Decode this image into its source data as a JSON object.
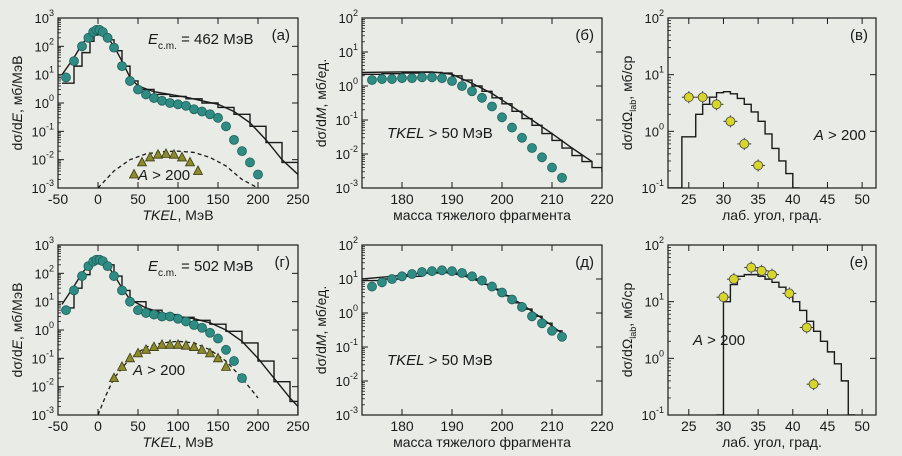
{
  "colors": {
    "background": "#e9ebe7",
    "ink": "#1a1a1a",
    "teal": "#2f8c84",
    "yellow": "#d8d62a",
    "olive": "#8c8a2a"
  },
  "chart_data": [
    {
      "id": "a",
      "type": "scatter",
      "panel_label": "(a)",
      "energy_label": "E",
      "energy_sub": "c.m.",
      "energy_value": " = 462 МэВ",
      "annotation": "A > 200",
      "xlabel": "TKEL, МэВ",
      "ylabel": "dσ/dE, мб/МэВ",
      "xlim": [
        -50,
        250
      ],
      "ylog": true,
      "ylim_exp": [
        -3,
        3
      ],
      "xticks": [
        -50,
        0,
        50,
        100,
        150,
        200,
        250
      ],
      "series": [
        {
          "kind": "points",
          "style": "teal",
          "x": [
            -40,
            -30,
            -20,
            -12,
            -6,
            -2,
            2,
            6,
            12,
            20,
            30,
            40,
            50,
            60,
            70,
            80,
            90,
            100,
            110,
            120,
            130,
            140,
            150,
            160,
            170,
            180,
            190,
            200
          ],
          "y": [
            8,
            30,
            100,
            200,
            320,
            380,
            380,
            320,
            200,
            90,
            20,
            6,
            3,
            2,
            1.5,
            1.2,
            1,
            0.9,
            0.8,
            0.6,
            0.5,
            0.4,
            0.3,
            0.15,
            0.05,
            0.02,
            0.008,
            0.003
          ]
        },
        {
          "kind": "points",
          "style": "triangle",
          "x": [
            45,
            55,
            65,
            75,
            85,
            95,
            105,
            115,
            125
          ],
          "y": [
            0.003,
            0.008,
            0.012,
            0.015,
            0.016,
            0.015,
            0.012,
            0.008,
            0.004
          ]
        },
        {
          "kind": "line",
          "style": "solid",
          "x": [
            -45,
            -30,
            -20,
            -10,
            -5,
            0,
            5,
            10,
            20,
            30,
            40,
            50,
            70,
            90,
            110,
            130,
            150,
            170,
            190,
            210,
            230,
            250
          ],
          "y": [
            10,
            40,
            120,
            250,
            350,
            400,
            350,
            250,
            100,
            30,
            8,
            4,
            2.5,
            2,
            1.6,
            1.2,
            0.9,
            0.5,
            0.2,
            0.05,
            0.01,
            0.003
          ]
        },
        {
          "kind": "line",
          "style": "steps",
          "x": [
            -45,
            -30,
            -20,
            -10,
            -5,
            0,
            5,
            10,
            20,
            30,
            40,
            50,
            70,
            90,
            110,
            130,
            150,
            170,
            190,
            210,
            230,
            250
          ],
          "y": [
            5,
            20,
            60,
            150,
            250,
            300,
            260,
            170,
            70,
            20,
            6,
            3,
            2,
            1.7,
            1.4,
            1,
            0.7,
            0.4,
            0.15,
            0.04,
            0.008,
            0.002
          ]
        },
        {
          "kind": "line",
          "style": "dashed",
          "x": [
            0,
            20,
            40,
            60,
            80,
            100,
            120,
            140,
            160,
            180,
            200
          ],
          "y": [
            0.001,
            0.004,
            0.01,
            0.016,
            0.019,
            0.02,
            0.018,
            0.012,
            0.006,
            0.002,
            0.001
          ]
        }
      ]
    },
    {
      "id": "b",
      "type": "scatter",
      "panel_label": "(б)",
      "annotation": "TKEL > 50 МэВ",
      "xlabel": "масса тяжелого фрагмента",
      "ylabel": "dσ/dM, мб/ед.",
      "xlim": [
        172,
        220
      ],
      "ylog": true,
      "ylim_exp": [
        -3,
        2
      ],
      "xticks": [
        180,
        190,
        200,
        210,
        220
      ],
      "series": [
        {
          "kind": "points",
          "style": "teal",
          "x": [
            174,
            176,
            178,
            180,
            182,
            184,
            186,
            188,
            190,
            192,
            194,
            196,
            198,
            200,
            202,
            204,
            206,
            208,
            210,
            212
          ],
          "y": [
            1.5,
            1.6,
            1.6,
            1.7,
            1.7,
            1.8,
            1.8,
            1.7,
            1.4,
            1.0,
            0.7,
            0.45,
            0.25,
            0.12,
            0.06,
            0.03,
            0.015,
            0.008,
            0.004,
            0.002
          ]
        },
        {
          "kind": "line",
          "style": "steps",
          "x": [
            172,
            176,
            180,
            184,
            188,
            190,
            192,
            194,
            196,
            198,
            200,
            202,
            204,
            206,
            208,
            210,
            212,
            214,
            216,
            218,
            220
          ],
          "y": [
            2.2,
            2.3,
            2.4,
            2.5,
            2.4,
            2.0,
            1.5,
            1.0,
            0.7,
            0.45,
            0.3,
            0.18,
            0.11,
            0.07,
            0.04,
            0.025,
            0.015,
            0.009,
            0.006,
            0.004,
            0.003
          ]
        },
        {
          "kind": "line",
          "style": "solid",
          "x": [
            172,
            180,
            186,
            190,
            194,
            198,
            202,
            206,
            210,
            214,
            218
          ],
          "y": [
            2.5,
            2.6,
            2.6,
            2.2,
            1.2,
            0.6,
            0.25,
            0.1,
            0.04,
            0.015,
            0.006
          ]
        }
      ]
    },
    {
      "id": "c",
      "type": "scatter",
      "panel_label": "(в)",
      "annotation": "A > 200",
      "xlabel": "лаб. угол, град.",
      "ylabel": "dσ/dΩ_lab, мб/ср",
      "ylabel_main": "dσ/dΩ",
      "ylabel_sub": "lab",
      "ylabel_tail": ", мб/ср",
      "xlim": [
        22,
        52
      ],
      "ylog": true,
      "ylim_exp": [
        -1,
        2
      ],
      "xticks": [
        25,
        30,
        35,
        40,
        45,
        50
      ],
      "series": [
        {
          "kind": "points",
          "style": "yellow",
          "x": [
            25,
            27,
            29,
            31,
            33,
            35
          ],
          "y": [
            4,
            4,
            3,
            1.5,
            0.6,
            0.25
          ],
          "xerr": 1
        },
        {
          "kind": "line",
          "style": "steps",
          "x": [
            22,
            24,
            26,
            27,
            28,
            29,
            30,
            31,
            32,
            33,
            34,
            35,
            36,
            37,
            38,
            39,
            40,
            41
          ],
          "y": [
            0.1,
            0.8,
            2,
            3,
            4,
            4.8,
            5,
            4.6,
            3.8,
            3,
            2.2,
            1.5,
            0.9,
            0.5,
            0.3,
            0.18,
            0.1,
            0.1
          ]
        }
      ]
    },
    {
      "id": "d",
      "type": "scatter",
      "panel_label": "(г)",
      "energy_label": "E",
      "energy_sub": "c.m.",
      "energy_value": " = 502 МэВ",
      "annotation": "A > 200",
      "xlabel": "TKEL, МэВ",
      "ylabel": "dσ/dE, мб/МэВ",
      "xlim": [
        -50,
        250
      ],
      "ylog": true,
      "ylim_exp": [
        -3,
        3
      ],
      "xticks": [
        -50,
        0,
        50,
        100,
        150,
        200,
        250
      ],
      "series": [
        {
          "kind": "points",
          "style": "teal",
          "x": [
            -40,
            -30,
            -20,
            -12,
            -6,
            -2,
            2,
            6,
            12,
            20,
            30,
            40,
            50,
            60,
            70,
            80,
            90,
            100,
            110,
            120,
            130,
            140,
            150,
            160,
            170,
            180
          ],
          "y": [
            5,
            25,
            80,
            180,
            260,
            300,
            300,
            270,
            180,
            80,
            25,
            10,
            5,
            4,
            3.5,
            3,
            3,
            2.5,
            2,
            1.5,
            1.2,
            0.8,
            0.5,
            0.2,
            0.08,
            0.02
          ]
        },
        {
          "kind": "points",
          "style": "triangle",
          "x": [
            20,
            30,
            40,
            50,
            60,
            70,
            80,
            90,
            100,
            110,
            120,
            130,
            140,
            150,
            160
          ],
          "y": [
            0.02,
            0.05,
            0.1,
            0.15,
            0.2,
            0.25,
            0.3,
            0.3,
            0.3,
            0.28,
            0.25,
            0.2,
            0.15,
            0.1,
            0.05
          ]
        },
        {
          "kind": "line",
          "style": "solid",
          "x": [
            -45,
            -30,
            -20,
            -10,
            -5,
            0,
            5,
            10,
            20,
            30,
            40,
            60,
            80,
            100,
            120,
            140,
            160,
            180,
            200,
            220,
            240,
            250
          ],
          "y": [
            8,
            35,
            100,
            220,
            320,
            350,
            320,
            220,
            90,
            30,
            12,
            6,
            4,
            3,
            2.5,
            1.8,
            1,
            0.4,
            0.1,
            0.02,
            0.004,
            0.002
          ]
        },
        {
          "kind": "line",
          "style": "steps",
          "x": [
            -45,
            -30,
            -20,
            -10,
            -5,
            0,
            5,
            10,
            20,
            30,
            40,
            60,
            80,
            100,
            120,
            140,
            160,
            180,
            200,
            220,
            240,
            250
          ],
          "y": [
            6,
            30,
            90,
            200,
            300,
            330,
            300,
            200,
            80,
            25,
            10,
            5,
            3.5,
            2.8,
            2.2,
            1.6,
            0.9,
            0.35,
            0.08,
            0.015,
            0.003,
            0.001
          ]
        },
        {
          "kind": "line",
          "style": "dashed",
          "x": [
            0,
            10,
            20,
            40,
            60,
            80,
            100,
            120,
            140,
            160,
            180,
            200
          ],
          "y": [
            0.001,
            0.005,
            0.02,
            0.1,
            0.25,
            0.35,
            0.4,
            0.35,
            0.2,
            0.08,
            0.02,
            0.004
          ]
        }
      ]
    },
    {
      "id": "e",
      "type": "scatter",
      "panel_label": "(д)",
      "annotation": "TKEL > 50 МэВ",
      "xlabel": "масса тяжелого фрагмента",
      "ylabel": "dσ/dM, мб/ед.",
      "xlim": [
        172,
        220
      ],
      "ylog": true,
      "ylim_exp": [
        -3,
        2
      ],
      "xticks": [
        180,
        190,
        200,
        210,
        220
      ],
      "series": [
        {
          "kind": "points",
          "style": "teal",
          "x": [
            174,
            176,
            178,
            180,
            182,
            184,
            186,
            188,
            190,
            192,
            194,
            196,
            198,
            200,
            202,
            204,
            206,
            208,
            210,
            212
          ],
          "y": [
            6,
            8,
            10,
            12,
            14,
            16,
            17,
            18,
            17,
            15,
            12,
            9,
            6,
            4,
            2.5,
            1.5,
            0.8,
            0.5,
            0.3,
            0.2
          ]
        },
        {
          "kind": "line",
          "style": "steps",
          "x": [
            172,
            176,
            180,
            184,
            188,
            190,
            192,
            194,
            196,
            198,
            200,
            202,
            204,
            206,
            208,
            210,
            212
          ],
          "y": [
            9,
            10,
            12,
            15,
            16,
            15,
            13,
            10,
            7,
            5,
            3.2,
            2,
            1.3,
            0.8,
            0.5,
            0.3,
            0.2
          ]
        },
        {
          "kind": "line",
          "style": "solid",
          "x": [
            172,
            178,
            184,
            188,
            192,
            196,
            200,
            204,
            208,
            212
          ],
          "y": [
            10,
            12,
            15,
            16,
            13,
            8,
            4,
            1.8,
            0.7,
            0.25
          ]
        }
      ]
    },
    {
      "id": "f",
      "type": "scatter",
      "panel_label": "(е)",
      "annotation": "A > 200",
      "xlabel": "лаб. угол, град.",
      "ylabel": "dσ/dΩ_lab, мб/ср",
      "ylabel_main": "dσ/dΩ",
      "ylabel_sub": "lab",
      "ylabel_tail": ", мб/ср",
      "xlim": [
        22,
        52
      ],
      "ylog": true,
      "ylim_exp": [
        -1,
        2
      ],
      "xticks": [
        25,
        30,
        35,
        40,
        45,
        50
      ],
      "series": [
        {
          "kind": "points",
          "style": "yellow",
          "x": [
            30,
            31.5,
            34,
            35.5,
            37,
            39.5,
            42,
            43
          ],
          "y": [
            12,
            25,
            40,
            35,
            30,
            14,
            3.5,
            0.35
          ],
          "xerr": 1
        },
        {
          "kind": "line",
          "style": "steps",
          "x": [
            29,
            30,
            31,
            32,
            33,
            34,
            35,
            36,
            37,
            38,
            39,
            40,
            41,
            42,
            43,
            44,
            45,
            46,
            47,
            48,
            49
          ],
          "y": [
            0.1,
            10,
            20,
            28,
            30,
            30,
            28,
            25,
            22,
            18,
            14,
            10,
            7,
            4.5,
            3,
            2,
            1.3,
            0.8,
            0.4,
            0.1,
            0.1
          ]
        }
      ]
    }
  ]
}
